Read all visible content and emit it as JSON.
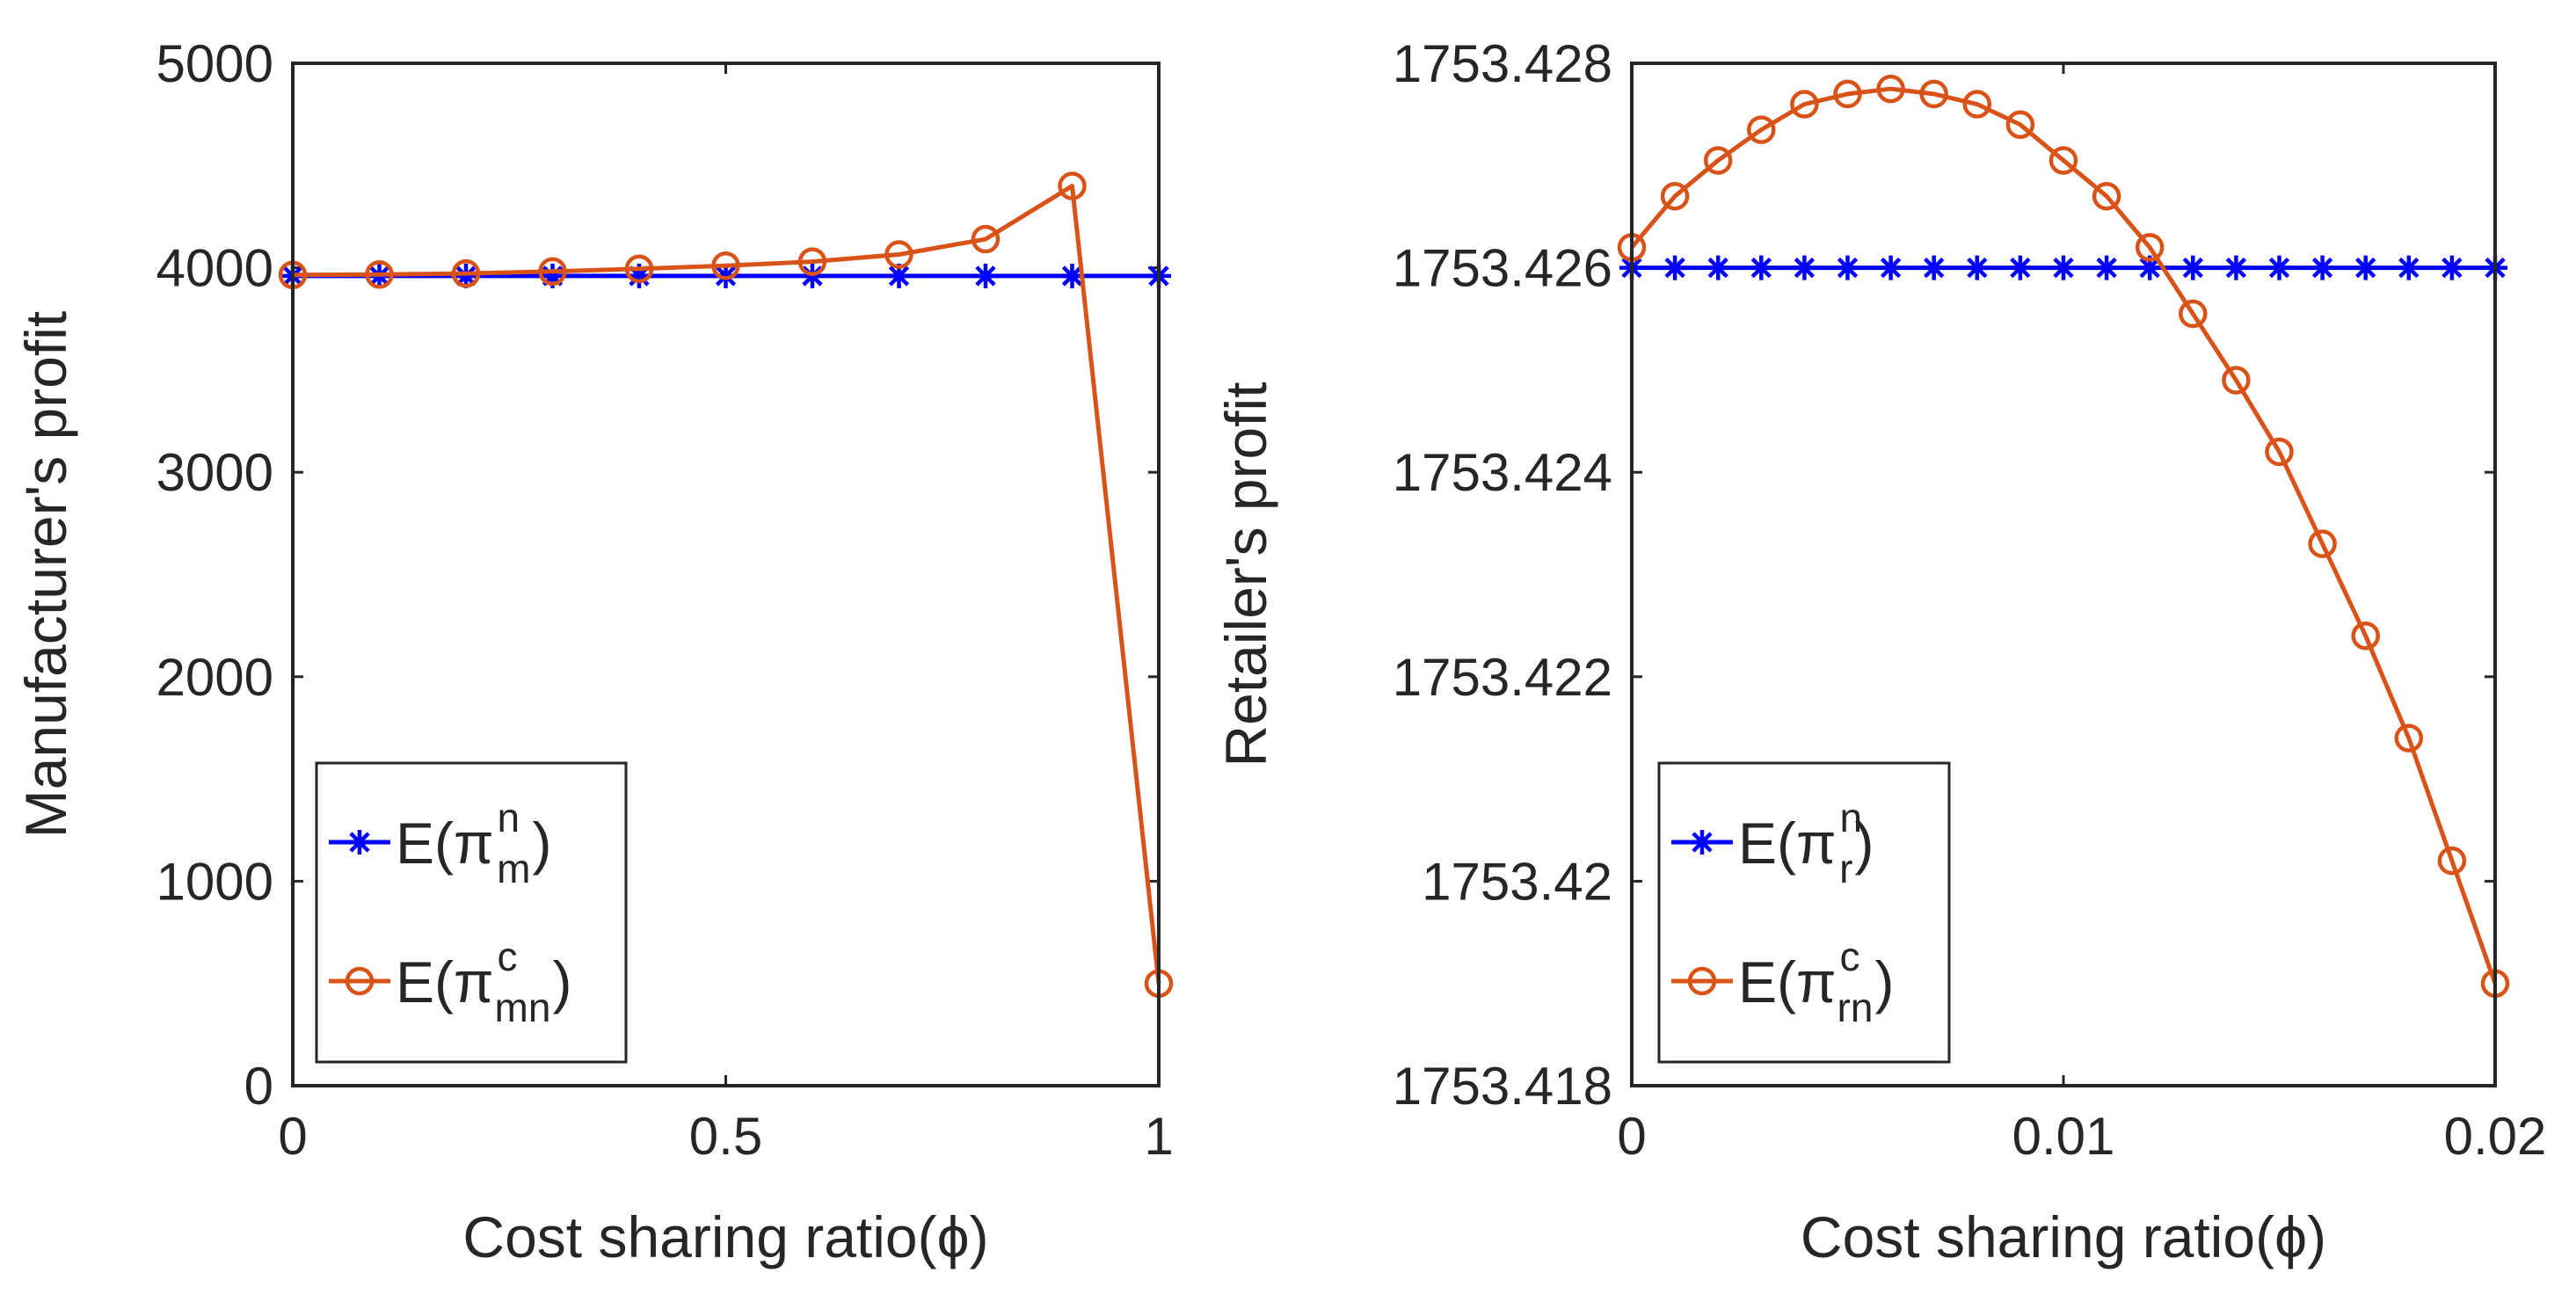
{
  "chart_data": [
    {
      "type": "line",
      "xlabel": "Cost sharing ratio(ϕ)",
      "ylabel": "Manufacturer's profit",
      "xlim": [
        0,
        1
      ],
      "ylim": [
        0,
        5000
      ],
      "xticks": [
        0,
        0.5,
        1
      ],
      "xtick_labels": [
        "0",
        "0.5",
        "1"
      ],
      "yticks": [
        0,
        1000,
        2000,
        3000,
        4000,
        5000
      ],
      "ytick_labels": [
        "0",
        "1000",
        "2000",
        "3000",
        "4000",
        "5000"
      ],
      "legend_position": "bottom-left",
      "series": [
        {
          "name": "E(π^n_m)",
          "legend": {
            "prefix": "E(π",
            "sup": "n",
            "sub": "m",
            "suffix": ")"
          },
          "color": "#0000ff",
          "marker": "asterisk",
          "x": [
            0,
            0.1,
            0.2,
            0.3,
            0.4,
            0.5,
            0.6,
            0.7,
            0.8,
            0.9,
            1.0
          ],
          "y": [
            3960,
            3960,
            3960,
            3960,
            3960,
            3960,
            3960,
            3960,
            3960,
            3960,
            3960
          ]
        },
        {
          "name": "E(π^c_mn)",
          "legend": {
            "prefix": "E(π",
            "sup": "c",
            "sub": "mn",
            "suffix": ")"
          },
          "color": "#d95319",
          "marker": "circle",
          "x": [
            0,
            0.1,
            0.2,
            0.3,
            0.4,
            0.5,
            0.6,
            0.7,
            0.8,
            0.9,
            1.0
          ],
          "y": [
            3965,
            3967,
            3972,
            3982,
            3995,
            4010,
            4030,
            4065,
            4140,
            4400,
            500
          ]
        }
      ]
    },
    {
      "type": "line",
      "xlabel": "Cost sharing ratio(ϕ)",
      "ylabel": "Retailer's profit",
      "xlim": [
        0,
        0.02
      ],
      "ylim": [
        1753.418,
        1753.428
      ],
      "xticks": [
        0,
        0.01,
        0.02
      ],
      "xtick_labels": [
        "0",
        "0.01",
        "0.02"
      ],
      "yticks": [
        1753.418,
        1753.42,
        1753.422,
        1753.424,
        1753.426,
        1753.428
      ],
      "ytick_labels": [
        "1753.418",
        "1753.42",
        "1753.422",
        "1753.424",
        "1753.426",
        "1753.428"
      ],
      "legend_position": "bottom-left",
      "series": [
        {
          "name": "E(π^n_r)",
          "legend": {
            "prefix": "E(π",
            "sup": "n",
            "sub": "r",
            "suffix": ")"
          },
          "color": "#0000ff",
          "marker": "asterisk",
          "x": [
            0,
            0.001,
            0.002,
            0.003,
            0.004,
            0.005,
            0.006,
            0.007,
            0.008,
            0.009,
            0.01,
            0.011,
            0.012,
            0.013,
            0.014,
            0.015,
            0.016,
            0.017,
            0.018,
            0.019,
            0.02
          ],
          "y": [
            1753.426,
            1753.426,
            1753.426,
            1753.426,
            1753.426,
            1753.426,
            1753.426,
            1753.426,
            1753.426,
            1753.426,
            1753.426,
            1753.426,
            1753.426,
            1753.426,
            1753.426,
            1753.426,
            1753.426,
            1753.426,
            1753.426,
            1753.426,
            1753.426
          ]
        },
        {
          "name": "E(π^c_rn)",
          "legend": {
            "prefix": "E(π",
            "sup": "c",
            "sub": "rn",
            "suffix": ")"
          },
          "color": "#d95319",
          "marker": "circle",
          "x": [
            0,
            0.001,
            0.002,
            0.003,
            0.004,
            0.005,
            0.006,
            0.007,
            0.008,
            0.009,
            0.01,
            0.011,
            0.012,
            0.013,
            0.014,
            0.015,
            0.016,
            0.017,
            0.018,
            0.019,
            0.02
          ],
          "y": [
            1753.4262,
            1753.4267,
            1753.42705,
            1753.42735,
            1753.4276,
            1753.4277,
            1753.42775,
            1753.4277,
            1753.4276,
            1753.4274,
            1753.42705,
            1753.4267,
            1753.4262,
            1753.42555,
            1753.4249,
            1753.4242,
            1753.4233,
            1753.4224,
            1753.4214,
            1753.4202,
            1753.419
          ]
        }
      ]
    }
  ]
}
